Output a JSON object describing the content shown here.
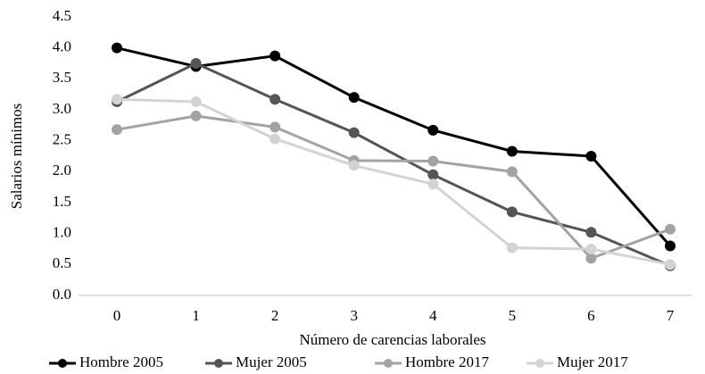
{
  "chart_data": {
    "type": "line",
    "x_label": "Número de carencias laborales",
    "y_label": "Salarios mínimos",
    "categories": [
      "0",
      "1",
      "2",
      "3",
      "4",
      "5",
      "6",
      "7"
    ],
    "series": [
      {
        "name": "Hombre 2005",
        "color": "#000000",
        "values": [
          4.0,
          3.7,
          3.87,
          3.2,
          2.67,
          2.33,
          2.25,
          0.8
        ]
      },
      {
        "name": "Mujer 2005",
        "color": "#555555",
        "values": [
          3.13,
          3.75,
          3.17,
          2.63,
          1.95,
          1.35,
          1.02,
          0.48
        ]
      },
      {
        "name": "Hombre 2017",
        "color": "#a3a3a3",
        "values": [
          2.68,
          2.9,
          2.72,
          2.18,
          2.17,
          2.0,
          0.6,
          1.07
        ]
      },
      {
        "name": "Mujer 2017",
        "color": "#d3d3d3",
        "values": [
          3.17,
          3.13,
          2.53,
          2.1,
          1.8,
          0.77,
          0.75,
          0.5
        ]
      }
    ],
    "ylim": [
      0,
      4.5
    ],
    "yticks": [
      {
        "value": 0,
        "label": "0.0"
      },
      0.5,
      {
        "value": 1,
        "label": "1.0"
      },
      1.5,
      {
        "value": 2,
        "label": "2.0"
      },
      2.5,
      {
        "value": 3,
        "label": "3.0"
      },
      3.5,
      {
        "value": 4,
        "label": "4.0"
      },
      4.5
    ],
    "grid": false,
    "legend": "bottom"
  }
}
